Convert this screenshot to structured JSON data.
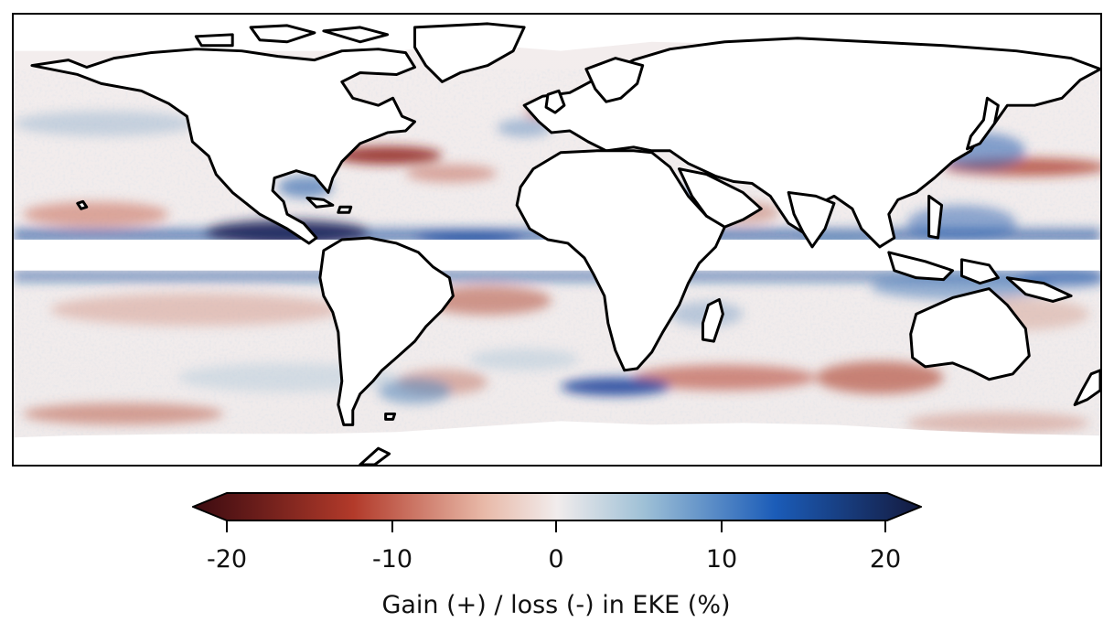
{
  "map": {
    "projection": "equirectangular",
    "extent_lon": [
      -180,
      180
    ],
    "extent_lat": [
      -60,
      75
    ],
    "masked_equatorial_band_lat": [
      -5,
      5
    ],
    "field": "EKE gain/loss (%)"
  },
  "colorbar": {
    "cmap": "balance (red → white → blue), extended both ends",
    "vmin": -20,
    "vmax": 20,
    "ticks": [
      "-20",
      "-10",
      "0",
      "10",
      "20"
    ],
    "label": "Gain (+) / loss (-) in EKE (%)",
    "colors": {
      "min": "#3a0a10",
      "neg_mid": "#b23a2a",
      "neg_light": "#e8b9a8",
      "zero": "#f1ecec",
      "pos_light": "#9ec0d6",
      "pos_mid": "#1b5cb8",
      "max": "#141a3e"
    }
  }
}
